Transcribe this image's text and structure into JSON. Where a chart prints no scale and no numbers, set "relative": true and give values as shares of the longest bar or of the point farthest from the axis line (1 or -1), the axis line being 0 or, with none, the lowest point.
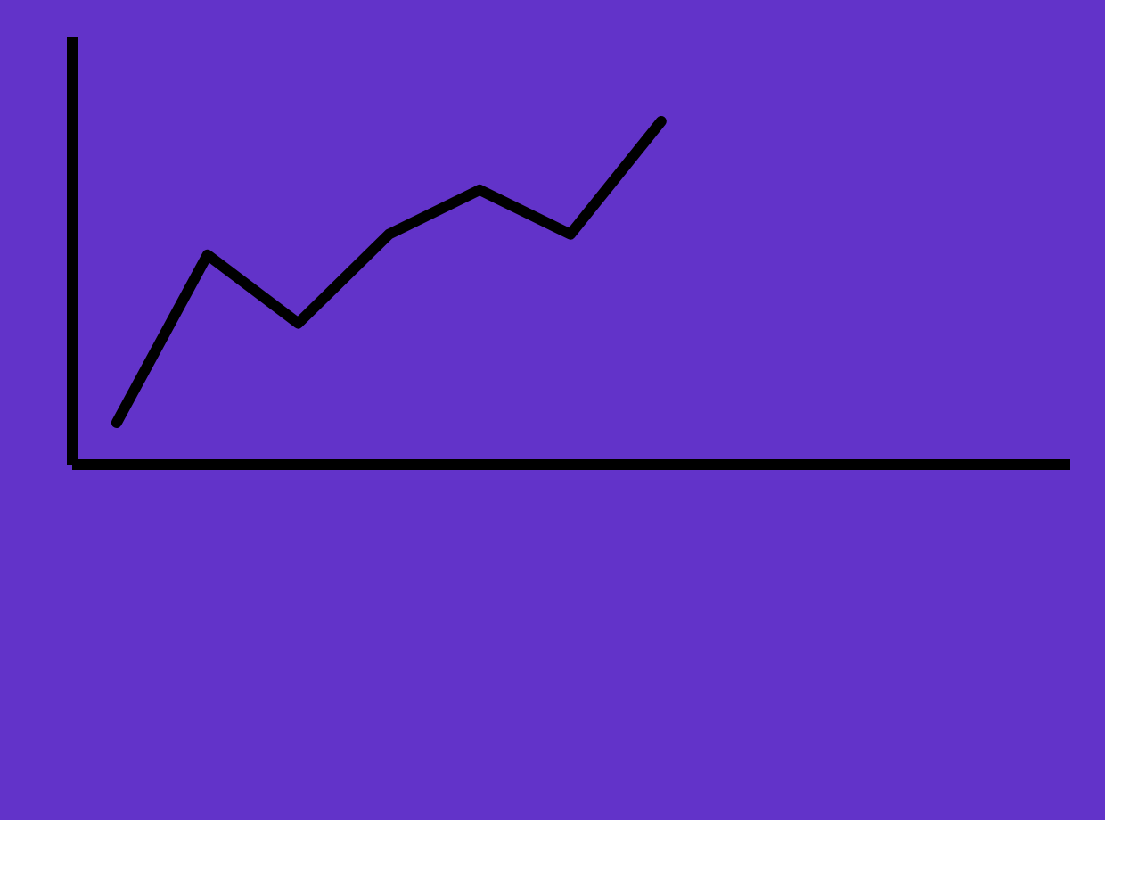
{
  "chart_data": {
    "type": "line",
    "relative": true,
    "categories": [
      null,
      null,
      null,
      null,
      null,
      null,
      null
    ],
    "series": [
      {
        "color": "#000000",
        "values": [
          0.12,
          0.61,
          0.41,
          0.67,
          0.8,
          0.67,
          1.0
        ]
      }
    ],
    "grid": false,
    "tick_labels": false,
    "marker": "none",
    "line_style": "solid"
  }
}
